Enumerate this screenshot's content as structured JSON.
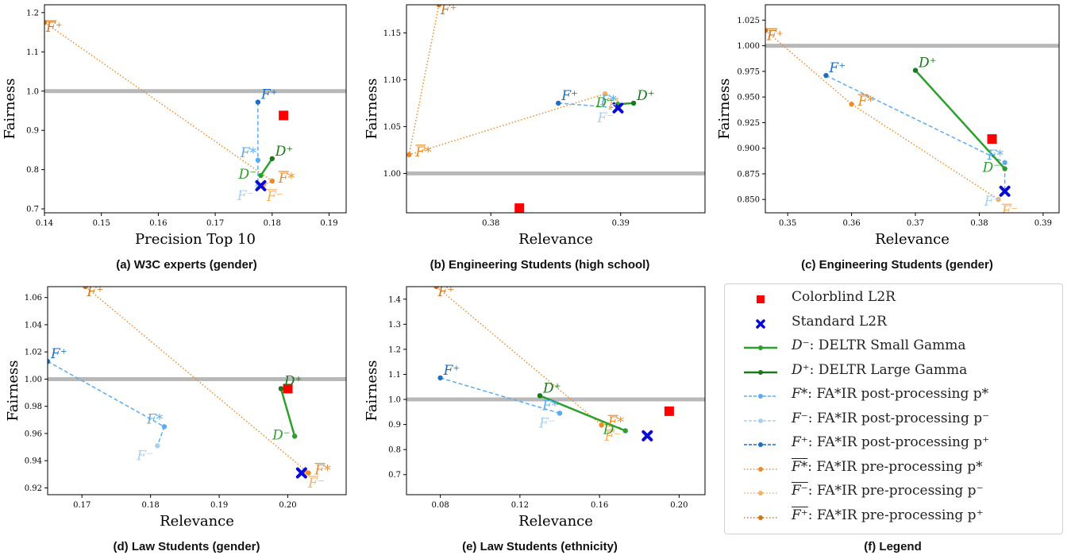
{
  "colors": {
    "colorblind": "#ff0000",
    "standard": "#0a0ad8",
    "deltr_small": "#2ca02c",
    "deltr_large": "#1a7a1a",
    "fa_post_star": "#5aacf0",
    "fa_post_minus": "#a8d0f2",
    "fa_post_plus": "#1f6fc0",
    "fa_pre_star": "#f08a24",
    "fa_pre_minus": "#f5b060",
    "fa_pre_plus": "#d9731a",
    "reference_line": "#b8b8b8"
  },
  "captions": {
    "a": "(a) W3C experts (gender)",
    "b": "(b) Engineering Students (high school)",
    "c": "(c) Engineering Students (gender)",
    "d": "(d) Law Students (gender)",
    "e": "(e) Law Students (ethnicity)",
    "f": "(f) Legend"
  },
  "legend": [
    {
      "key": "colorblind",
      "label": "Colorblind L2R"
    },
    {
      "key": "standard",
      "label": "Standard L2R"
    },
    {
      "key": "deltr_small",
      "sym": "D⁻",
      "label": ": DELTR Small Gamma"
    },
    {
      "key": "deltr_large",
      "sym": "D⁺",
      "label": ": DELTR Large Gamma"
    },
    {
      "key": "fa_post_star",
      "sym": "F*",
      "label": ": FA*IR post-processing p*"
    },
    {
      "key": "fa_post_minus",
      "sym": "F⁻",
      "label": ": FA*IR post-processing p⁻"
    },
    {
      "key": "fa_post_plus",
      "sym": "F⁺",
      "label": ": FA*IR post-processing p⁺"
    },
    {
      "key": "fa_pre_star",
      "sym": "F*",
      "bar": true,
      "label": ": FA*IR pre-processing p*"
    },
    {
      "key": "fa_pre_minus",
      "sym": "F⁻",
      "bar": true,
      "label": ": FA*IR pre-processing p⁻"
    },
    {
      "key": "fa_pre_plus",
      "sym": "F⁺",
      "bar": true,
      "label": ": FA*IR pre-processing p⁺"
    }
  ],
  "chart_data": [
    {
      "id": "a",
      "type": "scatter",
      "xlabel": "Precision Top 10",
      "ylabel": "Fairness",
      "xlim": [
        0.14,
        0.193
      ],
      "ylim": [
        0.69,
        1.22
      ],
      "xticks": [
        "0.14",
        "0.15",
        "0.16",
        "0.17",
        "0.18",
        "0.19"
      ],
      "yticks": [
        "0.7",
        "0.8",
        "0.9",
        "1.0",
        "1.1",
        "1.2"
      ],
      "reference_y": 1.0,
      "colorblind": [
        0.182,
        0.938
      ],
      "standard": [
        0.178,
        0.759
      ],
      "deltr": {
        "minus": [
          0.178,
          0.785
        ],
        "plus": [
          0.18,
          0.828
        ]
      },
      "fa_post": {
        "star": [
          0.1775,
          0.824
        ],
        "minus": [
          0.1775,
          0.759
        ],
        "plus": [
          0.1775,
          0.972
        ]
      },
      "fa_pre": {
        "star": [
          0.18,
          0.771
        ],
        "minus": [
          0.1785,
          0.761
        ],
        "plus": [
          0.14,
          1.175
        ]
      }
    },
    {
      "id": "b",
      "type": "scatter",
      "xlabel": "Relevance",
      "ylabel": "Fairness",
      "xlim": [
        0.3735,
        0.3965
      ],
      "ylim": [
        0.958,
        1.18
      ],
      "xticks": [
        "0.38",
        "0.39"
      ],
      "yticks": [
        "1.00",
        "1.05",
        "1.10",
        "1.15"
      ],
      "reference_y": 1.0,
      "colorblind": [
        0.3822,
        0.963
      ],
      "standard": [
        0.3898,
        1.07
      ],
      "deltr": {
        "minus": [
          0.3898,
          1.074
        ],
        "plus": [
          0.391,
          1.075
        ]
      },
      "fa_post": {
        "star": [
          0.3898,
          1.07
        ],
        "minus": [
          0.3898,
          1.07
        ],
        "plus": [
          0.3852,
          1.075
        ]
      },
      "fa_pre": {
        "star": [
          0.3737,
          1.02
        ],
        "minus": [
          0.3888,
          1.085
        ],
        "plus": [
          0.376,
          1.18
        ]
      }
    },
    {
      "id": "c",
      "type": "scatter",
      "xlabel": "Relevance",
      "ylabel": "Fairness",
      "xlim": [
        0.3465,
        0.3925
      ],
      "ylim": [
        0.837,
        1.04
      ],
      "xticks": [
        "0.35",
        "0.36",
        "0.37",
        "0.38",
        "0.39"
      ],
      "yticks": [
        "0.850",
        "0.875",
        "0.900",
        "0.925",
        "0.950",
        "0.975",
        "1.000",
        "1.025"
      ],
      "reference_y": 1.0,
      "colorblind": [
        0.382,
        0.909
      ],
      "standard": [
        0.384,
        0.858
      ],
      "deltr": {
        "minus": [
          0.384,
          0.88
        ],
        "plus": [
          0.37,
          0.976
        ]
      },
      "fa_post": {
        "star": [
          0.384,
          0.886
        ],
        "minus": [
          0.384,
          0.858
        ],
        "plus": [
          0.356,
          0.971
        ]
      },
      "fa_pre": {
        "star": [
          0.36,
          0.943
        ],
        "minus": [
          0.383,
          0.85
        ],
        "plus": [
          0.3465,
          1.015
        ]
      }
    },
    {
      "id": "d",
      "type": "scatter",
      "xlabel": "Relevance",
      "ylabel": "Fairness",
      "xlim": [
        0.165,
        0.2085
      ],
      "ylim": [
        0.915,
        1.068
      ],
      "xticks": [
        "0.17",
        "0.18",
        "0.19",
        "0.20"
      ],
      "yticks": [
        "0.92",
        "0.94",
        "0.96",
        "0.98",
        "1.00",
        "1.02",
        "1.04",
        "1.06"
      ],
      "reference_y": 1.0,
      "colorblind": [
        0.2,
        0.993
      ],
      "standard": [
        0.202,
        0.931
      ],
      "deltr": {
        "minus": [
          0.201,
          0.958
        ],
        "plus": [
          0.199,
          0.993
        ]
      },
      "fa_post": {
        "star": [
          0.182,
          0.965
        ],
        "minus": [
          0.181,
          0.951
        ],
        "plus": [
          0.165,
          1.013
        ]
      },
      "fa_pre": {
        "star": [
          0.203,
          0.931
        ],
        "minus": [
          0.2025,
          0.932
        ],
        "plus": [
          0.1705,
          1.068
        ]
      }
    },
    {
      "id": "e",
      "type": "scatter",
      "xlabel": "Relevance",
      "ylabel": "Fairness",
      "xlim": [
        0.063,
        0.213
      ],
      "ylim": [
        0.62,
        1.45
      ],
      "xticks": [
        "0.08",
        "0.12",
        "0.16",
        "0.20"
      ],
      "yticks": [
        "0.7",
        "0.8",
        "0.9",
        "1.0",
        "1.1",
        "1.2",
        "1.3",
        "1.4"
      ],
      "reference_y": 1.0,
      "colorblind": [
        0.195,
        0.953
      ],
      "standard": [
        0.184,
        0.855
      ],
      "deltr": {
        "minus": [
          0.173,
          0.875
        ],
        "plus": [
          0.13,
          1.015
        ]
      },
      "fa_post": {
        "star": [
          0.14,
          0.945
        ],
        "minus": [
          0.14,
          0.945
        ],
        "plus": [
          0.08,
          1.086
        ]
      },
      "fa_pre": {
        "star": [
          0.161,
          0.898
        ],
        "minus": [
          0.161,
          0.898
        ],
        "plus": [
          0.078,
          1.45
        ]
      }
    }
  ]
}
